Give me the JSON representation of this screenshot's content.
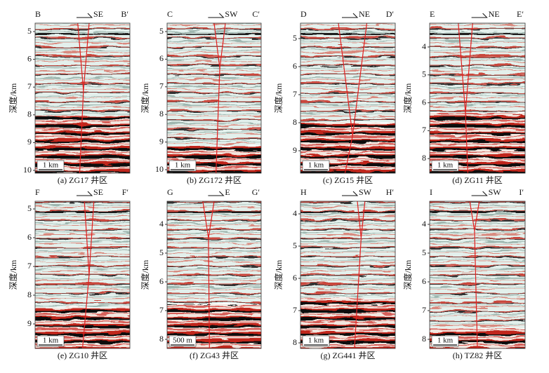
{
  "panels": [
    {
      "left": "B",
      "right": "B′",
      "direction": "SE",
      "axis_label": "深度/km",
      "yticks": [
        5,
        6,
        7,
        8,
        9,
        10
      ],
      "scale": "1 km",
      "caption": "(a) ZG17 井区"
    },
    {
      "left": "C",
      "right": "C′",
      "direction": "SW",
      "axis_label": "深度/km",
      "yticks": [
        5,
        6,
        7,
        8,
        9,
        10
      ],
      "scale": "1 km",
      "caption": "(b) ZG172 井区"
    },
    {
      "left": "D",
      "right": "D′",
      "direction": "NE",
      "axis_label": "深度/km",
      "yticks": [
        5,
        6,
        7,
        8,
        9
      ],
      "scale": "1 km",
      "caption": "(c) ZG15 井区"
    },
    {
      "left": "E",
      "right": "E′",
      "direction": "NE",
      "axis_label": "深度/km",
      "yticks": [
        4,
        5,
        6,
        7,
        8
      ],
      "scale": "1 km",
      "caption": "(d) ZG11 井区"
    },
    {
      "left": "F",
      "right": "F′",
      "direction": "SE",
      "axis_label": "深度/km",
      "yticks": [
        5,
        6,
        7,
        8,
        9
      ],
      "scale": "1 km",
      "caption": "(e) ZG10 井区"
    },
    {
      "left": "G",
      "right": "G′",
      "direction": "E",
      "axis_label": "深度/km",
      "yticks": [
        4,
        5,
        6,
        7,
        8
      ],
      "scale": "500 m",
      "caption": "(f) ZG43 井区"
    },
    {
      "left": "H",
      "right": "H′",
      "direction": "SW",
      "axis_label": "深度/km",
      "yticks": [
        4,
        5,
        6,
        7,
        8
      ],
      "scale": "1 km",
      "caption": "(g) ZG441 井区"
    },
    {
      "left": "I",
      "right": "I′",
      "direction": "SW",
      "axis_label": "深度/km",
      "yticks": [
        4,
        5,
        6,
        7,
        8
      ],
      "scale": "1 km",
      "caption": "(h) TZ82 井区"
    }
  ]
}
